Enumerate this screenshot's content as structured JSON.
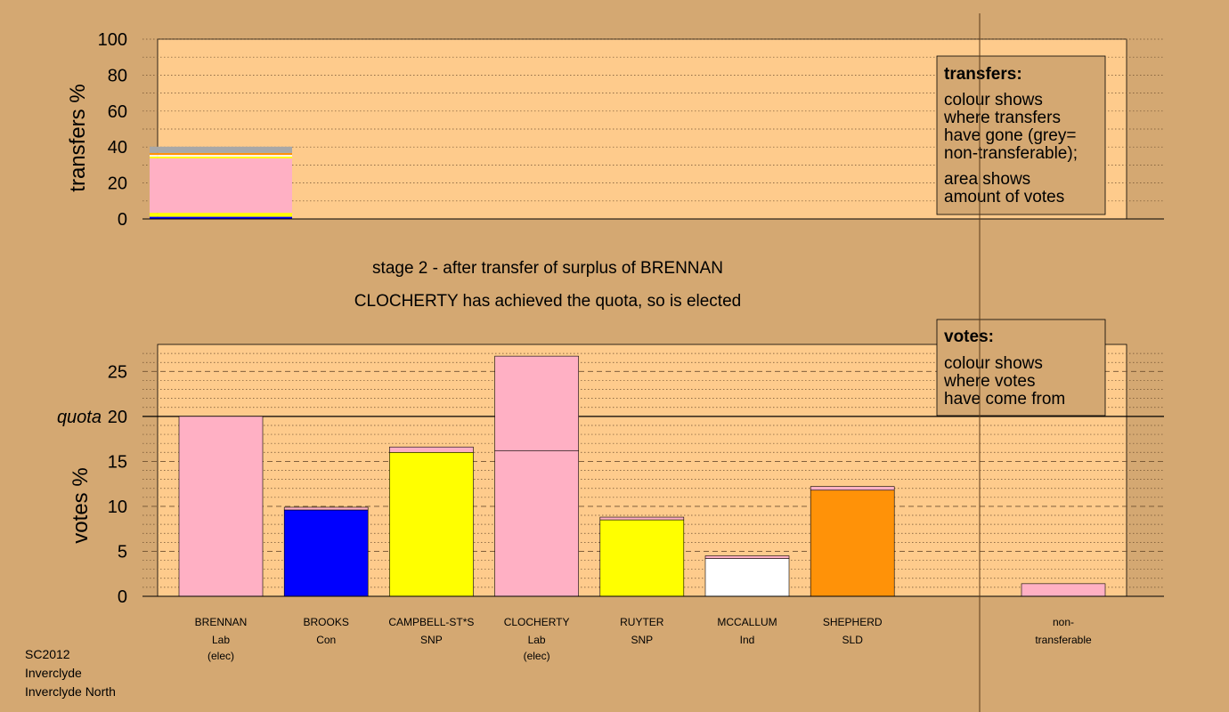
{
  "stage_title": "stage 2 - after transfer of surplus of BRENNAN",
  "stage_subtitle": "CLOCHERTY has achieved the quota, so is elected",
  "footer": {
    "line1": "SC2012",
    "line2": "Inverclyde",
    "line3": "Inverclyde North"
  },
  "colors": {
    "background": "#d4a872",
    "plot": "#fecb8c",
    "Lab": "#ffb0c4",
    "Con": "#0000ff",
    "SNP": "#ffff00",
    "Ind": "#ffffff",
    "SLD": "#ff9208",
    "non_transferable": "#a8a8a8"
  },
  "chart_data": [
    {
      "type": "bar",
      "stacked": true,
      "ylabel": "transfers %",
      "ylim": [
        0,
        100
      ],
      "yticks": [
        0,
        20,
        40,
        60,
        80,
        100
      ],
      "legend": {
        "title": "transfers:",
        "lines": [
          "colour shows",
          "where transfers",
          "have gone (grey=",
          "non-transferable);",
          "area shows",
          "amount of votes"
        ]
      },
      "bars": [
        {
          "from": "BRENNAN",
          "segments": [
            {
              "to": "BROOKS",
              "party": "Con",
              "value": 1.2
            },
            {
              "to": "CAMPBELL-ST*S",
              "party": "SNP",
              "value": 2.2
            },
            {
              "to": "CLOCHERTY",
              "party": "Lab",
              "value": 30.3
            },
            {
              "to": "RUYTER",
              "party": "SNP",
              "value": 1.0
            },
            {
              "to": "MCCALLUM",
              "party": "Ind",
              "value": 0.9
            },
            {
              "to": "SHEPHERD",
              "party": "SLD",
              "value": 1.1
            },
            {
              "to": "non-transferable",
              "party": "non_transferable",
              "value": 3.5
            }
          ]
        }
      ]
    },
    {
      "type": "bar",
      "stacked": true,
      "ylabel": "votes %",
      "ylim": [
        0,
        28
      ],
      "yticks": [
        0,
        5,
        10,
        15,
        20,
        25
      ],
      "quota": 20,
      "quota_label": "quota",
      "legend": {
        "title": "votes:",
        "lines": [
          "colour shows",
          "where votes",
          "have come from"
        ]
      },
      "candidates": [
        {
          "name": "BRENNAN",
          "party": "Lab",
          "note": "(elec)",
          "segments": [
            {
              "party": "Lab",
              "value": 20.0
            }
          ]
        },
        {
          "name": "BROOKS",
          "party": "Con",
          "note": "",
          "segments": [
            {
              "party": "Con",
              "value": 9.6
            },
            {
              "party": "Lab",
              "value": 0.3
            }
          ]
        },
        {
          "name": "CAMPBELL-ST*S",
          "party": "SNP",
          "note": "",
          "segments": [
            {
              "party": "SNP",
              "value": 16.0
            },
            {
              "party": "Lab",
              "value": 0.6
            }
          ]
        },
        {
          "name": "CLOCHERTY",
          "party": "Lab",
          "note": "(elec)",
          "segments": [
            {
              "party": "Lab",
              "value": 16.2
            },
            {
              "party": "Lab",
              "value": 10.5
            }
          ]
        },
        {
          "name": "RUYTER",
          "party": "SNP",
          "note": "",
          "segments": [
            {
              "party": "SNP",
              "value": 8.5
            },
            {
              "party": "Lab",
              "value": 0.3
            }
          ]
        },
        {
          "name": "MCCALLUM",
          "party": "Ind",
          "note": "",
          "segments": [
            {
              "party": "Ind",
              "value": 4.2
            },
            {
              "party": "Lab",
              "value": 0.3
            }
          ]
        },
        {
          "name": "SHEPHERD",
          "party": "SLD",
          "note": "",
          "segments": [
            {
              "party": "SLD",
              "value": 11.8
            },
            {
              "party": "Lab",
              "value": 0.4
            }
          ]
        }
      ],
      "non_transferable": {
        "label_line1": "non-",
        "label_line2": "transferable",
        "segments": [
          {
            "party": "Lab",
            "value": 1.4
          }
        ]
      }
    }
  ]
}
